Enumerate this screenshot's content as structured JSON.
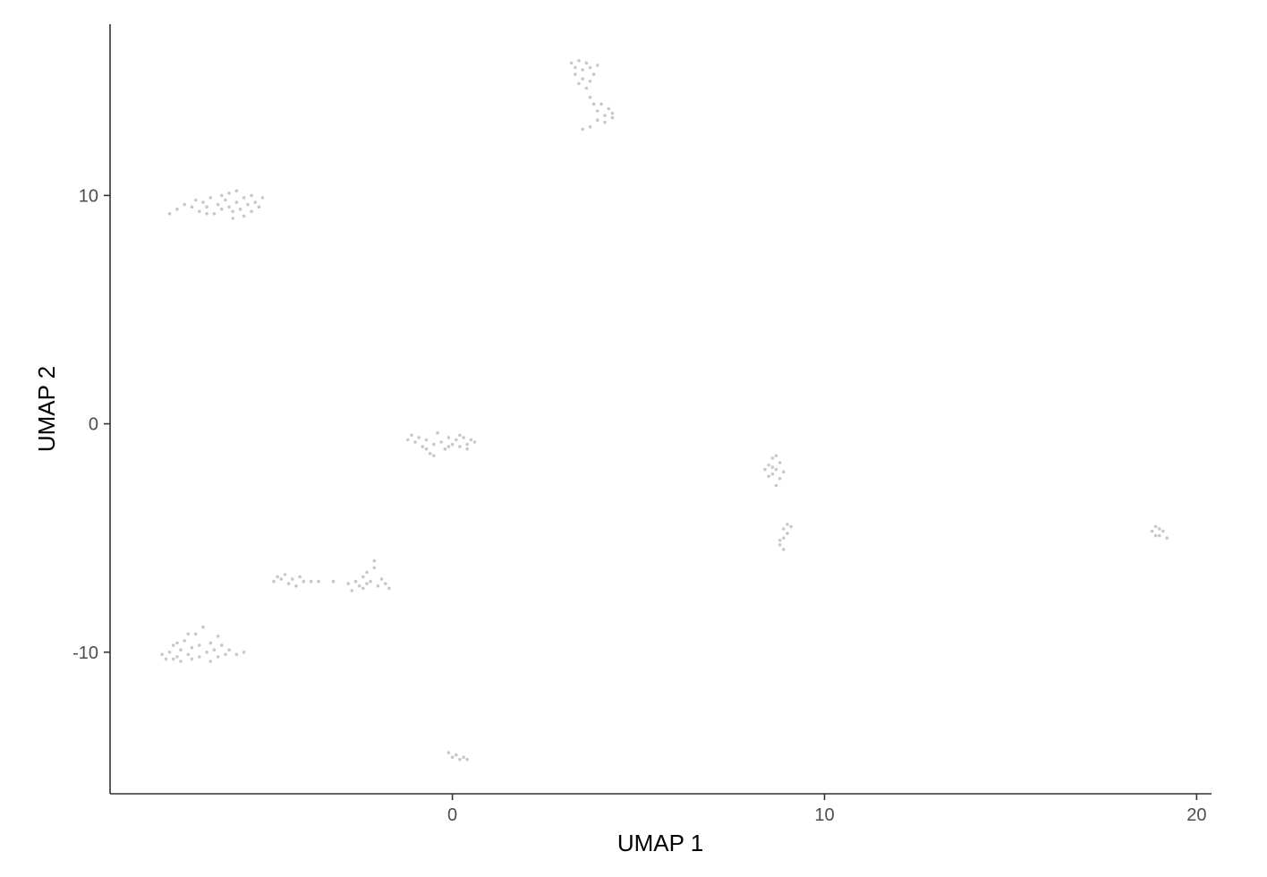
{
  "chart_data": {
    "type": "scatter",
    "title": "",
    "xlabel": "UMAP 1",
    "ylabel": "UMAP 2",
    "xlim": [
      -9.2,
      20.4
    ],
    "ylim": [
      -16.2,
      17.5
    ],
    "x_ticks": [
      0,
      10,
      20
    ],
    "x_tick_labels": [
      "0",
      "10",
      "20"
    ],
    "y_ticks": [
      -10,
      0,
      10
    ],
    "y_tick_labels": [
      "-10",
      "0",
      "10"
    ],
    "grid": false,
    "legend": "none",
    "point_color": "#c8c8c8",
    "clusters": [
      {
        "points": [
          [
            -7.4,
            9.4
          ],
          [
            -7.2,
            9.6
          ],
          [
            -7.0,
            9.5
          ],
          [
            -6.9,
            9.8
          ],
          [
            -6.8,
            9.3
          ],
          [
            -6.7,
            9.7
          ],
          [
            -6.6,
            9.5
          ],
          [
            -6.5,
            9.9
          ],
          [
            -6.4,
            9.2
          ],
          [
            -6.3,
            9.6
          ],
          [
            -6.2,
            9.4
          ],
          [
            -6.1,
            9.8
          ],
          [
            -6.0,
            9.5
          ],
          [
            -6.0,
            10.1
          ],
          [
            -5.9,
            9.3
          ],
          [
            -5.8,
            9.7
          ],
          [
            -5.8,
            10.2
          ],
          [
            -5.7,
            9.4
          ],
          [
            -5.6,
            9.9
          ],
          [
            -5.6,
            9.1
          ],
          [
            -5.5,
            9.6
          ],
          [
            -5.4,
            10.0
          ],
          [
            -5.4,
            9.3
          ],
          [
            -5.3,
            9.7
          ],
          [
            -5.2,
            9.5
          ],
          [
            -5.1,
            9.9
          ],
          [
            -6.6,
            9.2
          ],
          [
            -6.2,
            10.0
          ],
          [
            -5.9,
            9.0
          ],
          [
            -7.6,
            9.2
          ]
        ]
      },
      {
        "points": [
          [
            3.2,
            15.8
          ],
          [
            3.3,
            15.6
          ],
          [
            3.4,
            15.9
          ],
          [
            3.5,
            15.5
          ],
          [
            3.6,
            15.8
          ],
          [
            3.7,
            15.6
          ],
          [
            3.8,
            15.3
          ],
          [
            3.7,
            15.0
          ],
          [
            3.6,
            14.7
          ],
          [
            3.7,
            14.3
          ],
          [
            3.8,
            14.0
          ],
          [
            3.9,
            13.7
          ],
          [
            4.0,
            14.0
          ],
          [
            4.1,
            13.5
          ],
          [
            4.2,
            13.8
          ],
          [
            4.3,
            13.6
          ],
          [
            4.1,
            13.2
          ],
          [
            3.9,
            13.3
          ],
          [
            3.7,
            13.0
          ],
          [
            3.5,
            12.9
          ],
          [
            3.3,
            15.3
          ],
          [
            3.5,
            15.1
          ],
          [
            3.9,
            15.7
          ],
          [
            4.3,
            13.4
          ],
          [
            3.4,
            14.9
          ]
        ]
      },
      {
        "points": [
          [
            -1.2,
            -0.7
          ],
          [
            -1.1,
            -0.5
          ],
          [
            -1.0,
            -0.8
          ],
          [
            -0.9,
            -0.6
          ],
          [
            -0.8,
            -1.0
          ],
          [
            -0.7,
            -0.7
          ],
          [
            -0.6,
            -1.3
          ],
          [
            -0.5,
            -0.9
          ],
          [
            -0.4,
            -0.4
          ],
          [
            -0.3,
            -0.8
          ],
          [
            -0.2,
            -1.1
          ],
          [
            -0.1,
            -0.6
          ],
          [
            0.0,
            -0.9
          ],
          [
            0.1,
            -0.7
          ],
          [
            0.2,
            -1.0
          ],
          [
            0.3,
            -0.6
          ],
          [
            0.4,
            -0.9
          ],
          [
            0.5,
            -0.7
          ],
          [
            0.6,
            -0.8
          ],
          [
            -0.5,
            -1.4
          ],
          [
            -0.1,
            -1.0
          ],
          [
            0.2,
            -0.5
          ],
          [
            -0.7,
            -1.1
          ],
          [
            0.4,
            -1.1
          ]
        ]
      },
      {
        "points": [
          [
            8.4,
            -2.0
          ],
          [
            8.5,
            -1.8
          ],
          [
            8.6,
            -1.5
          ],
          [
            8.7,
            -1.4
          ],
          [
            8.6,
            -2.2
          ],
          [
            8.7,
            -2.0
          ],
          [
            8.8,
            -2.4
          ],
          [
            8.7,
            -2.7
          ],
          [
            8.8,
            -1.7
          ],
          [
            8.6,
            -1.9
          ],
          [
            8.9,
            -2.1
          ],
          [
            8.5,
            -2.3
          ]
        ]
      },
      {
        "points": [
          [
            8.9,
            -4.6
          ],
          [
            9.0,
            -4.4
          ],
          [
            9.1,
            -4.5
          ],
          [
            8.9,
            -5.0
          ],
          [
            8.8,
            -5.3
          ],
          [
            8.9,
            -5.5
          ],
          [
            8.8,
            -5.1
          ],
          [
            9.0,
            -4.8
          ]
        ]
      },
      {
        "points": [
          [
            18.8,
            -4.7
          ],
          [
            18.9,
            -4.5
          ],
          [
            19.0,
            -4.9
          ],
          [
            19.1,
            -4.7
          ],
          [
            19.2,
            -5.0
          ],
          [
            18.9,
            -4.9
          ],
          [
            19.0,
            -4.6
          ]
        ]
      },
      {
        "points": [
          [
            -4.8,
            -6.9
          ],
          [
            -4.7,
            -6.7
          ],
          [
            -4.6,
            -6.8
          ],
          [
            -4.5,
            -6.6
          ],
          [
            -4.4,
            -7.0
          ],
          [
            -4.3,
            -6.8
          ],
          [
            -4.2,
            -7.1
          ],
          [
            -4.1,
            -6.7
          ],
          [
            -4.0,
            -6.9
          ],
          [
            -3.8,
            -6.9
          ],
          [
            -3.6,
            -6.9
          ],
          [
            -3.2,
            -6.9
          ],
          [
            -2.8,
            -7.0
          ],
          [
            -2.7,
            -7.3
          ],
          [
            -2.6,
            -6.9
          ],
          [
            -2.5,
            -7.1
          ],
          [
            -2.4,
            -6.7
          ],
          [
            -2.3,
            -6.5
          ],
          [
            -2.3,
            -7.0
          ],
          [
            -2.2,
            -6.9
          ],
          [
            -2.1,
            -6.3
          ],
          [
            -2.0,
            -7.1
          ],
          [
            -1.9,
            -6.8
          ],
          [
            -1.8,
            -7.0
          ],
          [
            -1.7,
            -7.2
          ],
          [
            -2.1,
            -6.0
          ],
          [
            -2.4,
            -7.2
          ]
        ]
      },
      {
        "points": [
          [
            -7.8,
            -10.1
          ],
          [
            -7.7,
            -10.3
          ],
          [
            -7.6,
            -10.0
          ],
          [
            -7.5,
            -9.7
          ],
          [
            -7.4,
            -10.2
          ],
          [
            -7.4,
            -9.6
          ],
          [
            -7.3,
            -10.4
          ],
          [
            -7.3,
            -9.9
          ],
          [
            -7.2,
            -9.5
          ],
          [
            -7.1,
            -10.1
          ],
          [
            -7.0,
            -9.8
          ],
          [
            -7.0,
            -10.3
          ],
          [
            -6.9,
            -9.2
          ],
          [
            -6.8,
            -9.7
          ],
          [
            -6.8,
            -10.2
          ],
          [
            -6.7,
            -8.9
          ],
          [
            -6.6,
            -10.0
          ],
          [
            -6.5,
            -9.6
          ],
          [
            -6.5,
            -10.4
          ],
          [
            -6.4,
            -9.9
          ],
          [
            -6.3,
            -10.2
          ],
          [
            -6.2,
            -9.7
          ],
          [
            -6.1,
            -10.1
          ],
          [
            -6.0,
            -9.9
          ],
          [
            -5.8,
            -10.1
          ],
          [
            -5.6,
            -10.0
          ],
          [
            -6.3,
            -9.3
          ],
          [
            -7.5,
            -10.3
          ],
          [
            -7.1,
            -9.2
          ]
        ]
      },
      {
        "points": [
          [
            -0.1,
            -14.4
          ],
          [
            0.0,
            -14.6
          ],
          [
            0.1,
            -14.5
          ],
          [
            0.2,
            -14.7
          ],
          [
            0.3,
            -14.6
          ],
          [
            0.4,
            -14.7
          ]
        ]
      }
    ]
  }
}
